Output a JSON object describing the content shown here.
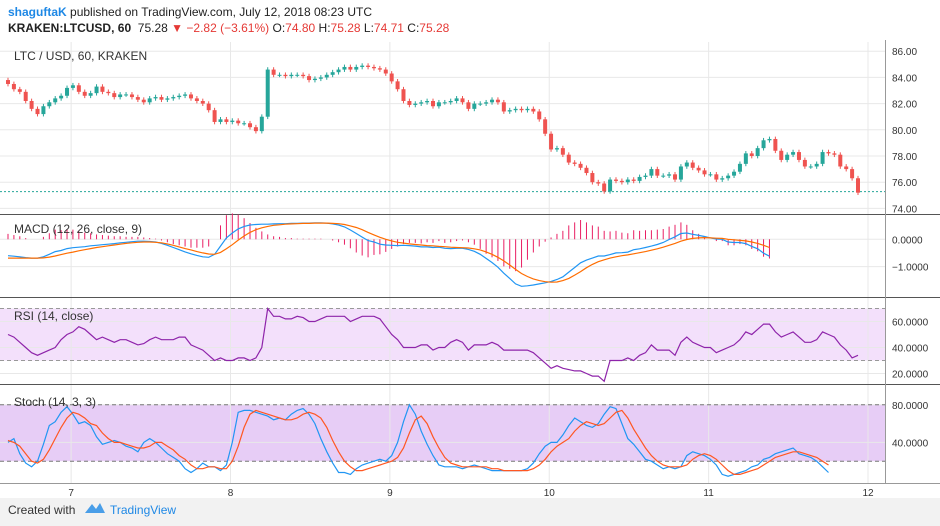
{
  "header": {
    "author": "shaguftaK",
    "published": "published on TradingView.com, July 12, 2018 08:23 UTC",
    "symbol": "KRAKEN:LTCUSD, 60",
    "last": "75.28",
    "change": "−2.82 (−3.61%)",
    "o_label": "O:",
    "o_value": "74.80",
    "h_label": "H:",
    "h_value": "75.28",
    "l_label": "L:",
    "l_value": "74.71",
    "c_label": "C:",
    "c_value": "75.28"
  },
  "footer": {
    "created_with": "Created with",
    "brand": "TradingView"
  },
  "colors": {
    "up": "#26a69a",
    "down": "#ef5350",
    "macd": "#2196f3",
    "signal": "#ff6d00",
    "hist": "#e91e63",
    "rsi": "#8e24aa",
    "stoch_k": "#2196f3",
    "stoch_d": "#ff5722",
    "band_rsi": "#f3e0fb",
    "band_stoch": "#e7cdf6",
    "last_line": "#26a69a"
  },
  "chart_data": [
    {
      "type": "candlestick",
      "title": "LTC / USD, 60, KRAKEN",
      "ylim": [
        73.8,
        86.4
      ],
      "y_ticks": [
        "86.00",
        "84.00",
        "82.00",
        "80.00",
        "78.00",
        "76.00",
        "74.00"
      ],
      "x_ticks": [
        "7",
        "8",
        "9",
        "10",
        "11",
        "12"
      ],
      "last_price": 75.28,
      "close": [
        83.5,
        83.1,
        82.9,
        82.2,
        81.6,
        81.2,
        81.8,
        82.1,
        82.4,
        82.6,
        83.2,
        83.4,
        82.9,
        82.6,
        82.8,
        83.3,
        82.9,
        82.8,
        82.5,
        82.7,
        82.7,
        82.5,
        82.3,
        82.1,
        82.4,
        82.5,
        82.3,
        82.4,
        82.5,
        82.6,
        82.7,
        82.4,
        82.2,
        82.0,
        81.5,
        80.6,
        80.8,
        80.6,
        80.7,
        80.5,
        80.5,
        80.2,
        79.9,
        81.0,
        84.6,
        84.2,
        84.2,
        84.1,
        84.2,
        84.2,
        84.1,
        83.8,
        83.9,
        84.0,
        84.2,
        84.4,
        84.6,
        84.8,
        84.6,
        84.8,
        84.9,
        84.8,
        84.7,
        84.6,
        84.3,
        83.7,
        83.1,
        82.2,
        81.9,
        82.0,
        82.1,
        82.2,
        81.8,
        82.1,
        82.1,
        82.2,
        82.4,
        82.1,
        81.6,
        82.0,
        82.0,
        82.1,
        82.3,
        82.1,
        81.4,
        81.5,
        81.6,
        81.5,
        81.6,
        81.4,
        80.8,
        79.7,
        78.5,
        78.6,
        78.1,
        77.5,
        77.4,
        77.1,
        76.7,
        76.0,
        75.9,
        75.3,
        76.2,
        76.1,
        76.0,
        76.2,
        76.1,
        76.4,
        76.5,
        77.0,
        76.5,
        76.5,
        76.6,
        76.2,
        77.2,
        77.5,
        77.1,
        76.9,
        76.6,
        76.6,
        76.2,
        76.3,
        76.5,
        76.8,
        77.4,
        78.2,
        78.0,
        78.6,
        79.2,
        79.3,
        78.4,
        77.7,
        78.1,
        78.3,
        77.7,
        77.2,
        77.2,
        77.4,
        78.3,
        78.2,
        78.1,
        77.2,
        77.0,
        76.3,
        75.2
      ]
    },
    {
      "type": "line",
      "title": "MACD (12, 26, close, 9)",
      "ylim": [
        -2.0,
        0.85
      ],
      "y_ticks": [
        "0.0000",
        "−1.0000"
      ],
      "series": [
        {
          "name": "MACD",
          "values": [
            -0.6,
            -0.62,
            -0.64,
            -0.67,
            -0.69,
            -0.69,
            -0.64,
            -0.55,
            -0.45,
            -0.41,
            -0.34,
            -0.31,
            -0.29,
            -0.27,
            -0.24,
            -0.22,
            -0.2,
            -0.18,
            -0.16,
            -0.13,
            -0.11,
            -0.09,
            -0.07,
            -0.07,
            -0.08,
            -0.1,
            -0.15,
            -0.22,
            -0.3,
            -0.38,
            -0.46,
            -0.53,
            -0.59,
            -0.64,
            -0.66,
            -0.55,
            -0.25,
            0.05,
            0.23,
            0.38,
            0.47,
            0.52,
            0.54,
            0.55,
            0.55,
            0.56,
            0.57,
            0.57,
            0.58,
            0.58,
            0.59,
            0.59,
            0.6,
            0.6,
            0.59,
            0.56,
            0.52,
            0.45,
            0.34,
            0.21,
            0.08,
            -0.05,
            -0.1,
            -0.18,
            -0.21,
            -0.22,
            -0.23,
            -0.22,
            -0.23,
            -0.25,
            -0.28,
            -0.28,
            -0.3,
            -0.29,
            -0.33,
            -0.34,
            -0.33,
            -0.33,
            -0.37,
            -0.44,
            -0.55,
            -0.7,
            -0.85,
            -1.02,
            -1.24,
            -1.43,
            -1.63,
            -1.72,
            -1.7,
            -1.67,
            -1.63,
            -1.59,
            -1.54,
            -1.47,
            -1.37,
            -1.2,
            -1.03,
            -0.86,
            -0.76,
            -0.69,
            -0.61,
            -0.61,
            -0.56,
            -0.5,
            -0.49,
            -0.47,
            -0.38,
            -0.35,
            -0.3,
            -0.25,
            -0.19,
            -0.12,
            -0.01,
            0.09,
            0.21,
            0.23,
            0.18,
            0.14,
            0.1,
            0.05,
            0.01,
            0.0,
            -0.1,
            -0.12,
            -0.12,
            -0.16,
            -0.26,
            -0.35,
            -0.51,
            -0.62
          ]
        },
        {
          "name": "Signal",
          "values": [
            -0.69,
            -0.69,
            -0.69,
            -0.69,
            -0.69,
            -0.69,
            -0.68,
            -0.65,
            -0.61,
            -0.56,
            -0.51,
            -0.47,
            -0.42,
            -0.38,
            -0.34,
            -0.3,
            -0.27,
            -0.24,
            -0.21,
            -0.18,
            -0.15,
            -0.13,
            -0.11,
            -0.1,
            -0.1,
            -0.11,
            -0.13,
            -0.17,
            -0.22,
            -0.28,
            -0.34,
            -0.39,
            -0.45,
            -0.5,
            -0.54,
            -0.55,
            -0.48,
            -0.35,
            -0.2,
            -0.03,
            0.12,
            0.25,
            0.35,
            0.42,
            0.47,
            0.51,
            0.53,
            0.55,
            0.56,
            0.57,
            0.58,
            0.58,
            0.59,
            0.59,
            0.59,
            0.58,
            0.57,
            0.54,
            0.49,
            0.43,
            0.35,
            0.25,
            0.16,
            0.07,
            0.0,
            -0.06,
            -0.11,
            -0.14,
            -0.17,
            -0.19,
            -0.21,
            -0.23,
            -0.24,
            -0.26,
            -0.27,
            -0.29,
            -0.3,
            -0.31,
            -0.32,
            -0.35,
            -0.39,
            -0.46,
            -0.55,
            -0.66,
            -0.79,
            -0.94,
            -1.1,
            -1.25,
            -1.36,
            -1.45,
            -1.51,
            -1.55,
            -1.57,
            -1.56,
            -1.51,
            -1.43,
            -1.31,
            -1.18,
            -1.04,
            -0.92,
            -0.82,
            -0.75,
            -0.69,
            -0.64,
            -0.6,
            -0.57,
            -0.53,
            -0.49,
            -0.45,
            -0.4,
            -0.35,
            -0.29,
            -0.22,
            -0.15,
            -0.07,
            -0.01,
            0.03,
            0.05,
            0.06,
            0.05,
            0.04,
            0.03,
            0.0,
            -0.02,
            -0.04,
            -0.06,
            -0.1,
            -0.15,
            -0.22,
            -0.3
          ]
        }
      ]
    },
    {
      "type": "line",
      "title": "RSI (14, close)",
      "ylim": [
        15,
        75
      ],
      "y_ticks": [
        "60.0000",
        "40.0000",
        "20.0000"
      ],
      "bands": [
        30,
        70
      ],
      "series": [
        {
          "name": "RSI",
          "values": [
            50,
            48,
            44,
            40,
            36,
            34,
            36,
            38,
            40,
            46,
            50,
            52,
            56,
            54,
            50,
            46,
            48,
            46,
            44,
            46,
            46,
            44,
            42,
            43,
            46,
            48,
            46,
            46,
            46,
            48,
            48,
            42,
            40,
            38,
            34,
            30,
            32,
            30,
            30,
            32,
            32,
            30,
            32,
            40,
            70,
            64,
            64,
            62,
            62,
            64,
            63,
            60,
            60,
            62,
            64,
            64,
            64,
            64,
            60,
            62,
            64,
            64,
            64,
            62,
            56,
            50,
            46,
            40,
            40,
            40,
            42,
            42,
            38,
            40,
            40,
            44,
            46,
            44,
            38,
            42,
            42,
            42,
            44,
            42,
            38,
            38,
            38,
            38,
            38,
            36,
            32,
            28,
            24,
            26,
            24,
            23,
            22,
            22,
            20,
            18,
            18,
            14,
            30,
            30,
            30,
            32,
            30,
            34,
            36,
            42,
            38,
            38,
            38,
            34,
            44,
            48,
            44,
            42,
            40,
            40,
            36,
            38,
            40,
            42,
            46,
            52,
            50,
            54,
            58,
            58,
            52,
            48,
            50,
            52,
            48,
            44,
            44,
            46,
            52,
            50,
            48,
            42,
            38,
            32,
            34
          ]
        }
      ]
    },
    {
      "type": "line",
      "title": "Stoch (14, 3, 3)",
      "ylim": [
        0,
        100
      ],
      "y_ticks": [
        "80.0000",
        "40.0000"
      ],
      "bands": [
        20,
        80
      ],
      "series": [
        {
          "name": "%K",
          "values": [
            40,
            44,
            28,
            18,
            14,
            20,
            38,
            58,
            62,
            72,
            78,
            70,
            60,
            62,
            58,
            46,
            38,
            40,
            42,
            40,
            36,
            34,
            30,
            40,
            44,
            40,
            34,
            28,
            24,
            20,
            12,
            8,
            12,
            18,
            14,
            14,
            10,
            16,
            40,
            72,
            74,
            74,
            72,
            70,
            68,
            64,
            66,
            64,
            70,
            74,
            76,
            70,
            60,
            44,
            30,
            18,
            8,
            8,
            6,
            12,
            16,
            18,
            20,
            22,
            20,
            26,
            40,
            62,
            80,
            70,
            52,
            38,
            26,
            16,
            14,
            14,
            14,
            12,
            14,
            16,
            14,
            12,
            10,
            10,
            10,
            10,
            10,
            10,
            12,
            18,
            28,
            36,
            40,
            40,
            48,
            58,
            66,
            62,
            58,
            56,
            60,
            70,
            78,
            76,
            60,
            44,
            38,
            30,
            22,
            20,
            16,
            12,
            14,
            12,
            14,
            26,
            30,
            28,
            26,
            22,
            16,
            6,
            4,
            6,
            8,
            10,
            14,
            16,
            22,
            24,
            28,
            30,
            32,
            34,
            28,
            26,
            24,
            20,
            14,
            8
          ]
        },
        {
          "name": "%D",
          "values": [
            42,
            40,
            36,
            28,
            20,
            18,
            22,
            32,
            44,
            56,
            66,
            72,
            70,
            66,
            60,
            58,
            50,
            44,
            40,
            40,
            38,
            36,
            34,
            34,
            36,
            40,
            40,
            36,
            32,
            26,
            22,
            16,
            12,
            12,
            14,
            14,
            12,
            12,
            20,
            36,
            56,
            70,
            74,
            72,
            70,
            68,
            66,
            64,
            64,
            66,
            70,
            72,
            70,
            66,
            56,
            42,
            30,
            20,
            14,
            10,
            10,
            12,
            14,
            16,
            18,
            20,
            24,
            34,
            50,
            64,
            68,
            60,
            46,
            34,
            24,
            18,
            16,
            14,
            14,
            14,
            14,
            14,
            12,
            12,
            10,
            10,
            10,
            10,
            10,
            12,
            16,
            22,
            30,
            36,
            40,
            44,
            52,
            58,
            62,
            60,
            58,
            60,
            66,
            72,
            74,
            66,
            54,
            44,
            34,
            26,
            20,
            16,
            14,
            14,
            14,
            16,
            22,
            26,
            28,
            26,
            22,
            16,
            10,
            6,
            6,
            8,
            10,
            12,
            16,
            20,
            24,
            26,
            28,
            30,
            30,
            28,
            26,
            24,
            20,
            16
          ]
        }
      ]
    }
  ]
}
